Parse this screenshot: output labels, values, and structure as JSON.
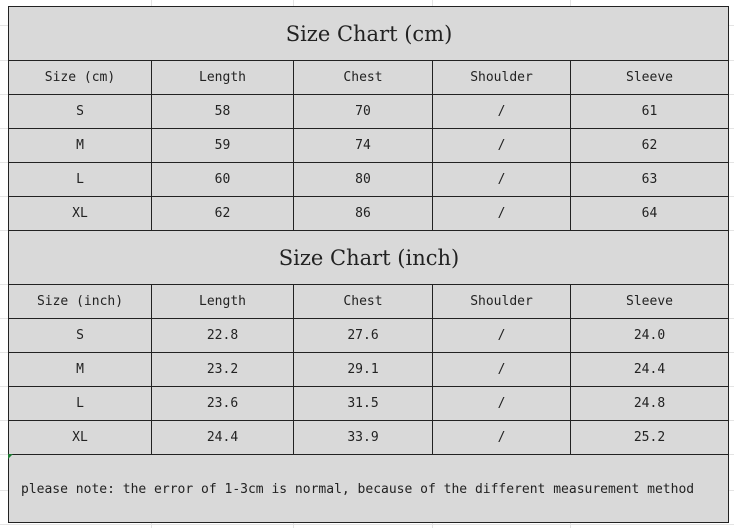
{
  "tables": [
    {
      "title": "Size Chart (cm)",
      "headers": [
        "Size (cm)",
        "Length",
        "Chest",
        "Shoulder",
        "Sleeve"
      ],
      "rows": [
        [
          "S",
          "58",
          "70",
          "/",
          "61"
        ],
        [
          "M",
          "59",
          "74",
          "/",
          "62"
        ],
        [
          "L",
          "60",
          "80",
          "/",
          "63"
        ],
        [
          "XL",
          "62",
          "86",
          "/",
          "64"
        ]
      ]
    },
    {
      "title": "Size Chart (inch)",
      "headers": [
        "Size (inch)",
        "Length",
        "Chest",
        "Shoulder",
        "Sleeve"
      ],
      "rows": [
        [
          "S",
          "22.8",
          "27.6",
          "/",
          "24.0"
        ],
        [
          "M",
          "23.2",
          "29.1",
          "/",
          "24.4"
        ],
        [
          "L",
          "23.6",
          "31.5",
          "/",
          "24.8"
        ],
        [
          "XL",
          "24.4",
          "33.9",
          "/",
          "25.2"
        ]
      ]
    }
  ],
  "note": "please note: the error of 1-3cm is normal, because of the different measurement method",
  "colors": {
    "cell_fill": "#d9d9d9",
    "border": "#222222"
  }
}
